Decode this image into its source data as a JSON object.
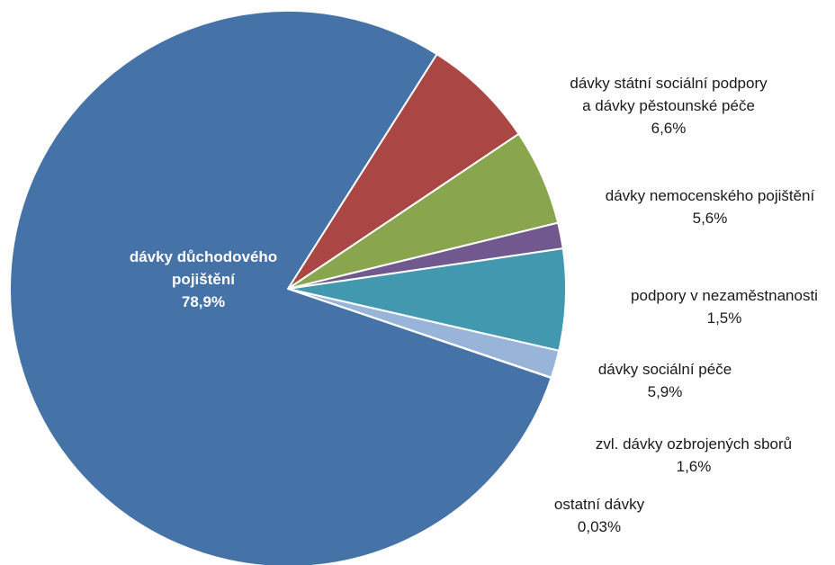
{
  "chart_data": {
    "type": "pie",
    "title": "",
    "slices": [
      {
        "label_lines": [
          "dávky důchodového",
          "pojištění"
        ],
        "value": 78.9,
        "value_label": "78,9%",
        "color": "#4572A7"
      },
      {
        "label_lines": [
          "dávky státní sociální podpory",
          "a dávky pěstounské péče"
        ],
        "value": 6.6,
        "value_label": "6,6%",
        "color": "#AA4643"
      },
      {
        "label_lines": [
          "dávky nemocenského pojištění"
        ],
        "value": 5.6,
        "value_label": "5,6%",
        "color": "#89A54E"
      },
      {
        "label_lines": [
          "podpory v nezaměstnanosti"
        ],
        "value": 1.5,
        "value_label": "1,5%",
        "color": "#71588F"
      },
      {
        "label_lines": [
          "dávky sociální péče"
        ],
        "value": 5.9,
        "value_label": "5,9%",
        "color": "#4198AF"
      },
      {
        "label_lines": [
          "zvl. dávky ozbrojených sborů"
        ],
        "value": 1.6,
        "value_label": "1,6%",
        "color": "#98B4D9"
      },
      {
        "label_lines": [
          "ostatní dávky"
        ],
        "value": 0.03,
        "value_label": "0,03%",
        "color": "#DB843D"
      }
    ]
  }
}
